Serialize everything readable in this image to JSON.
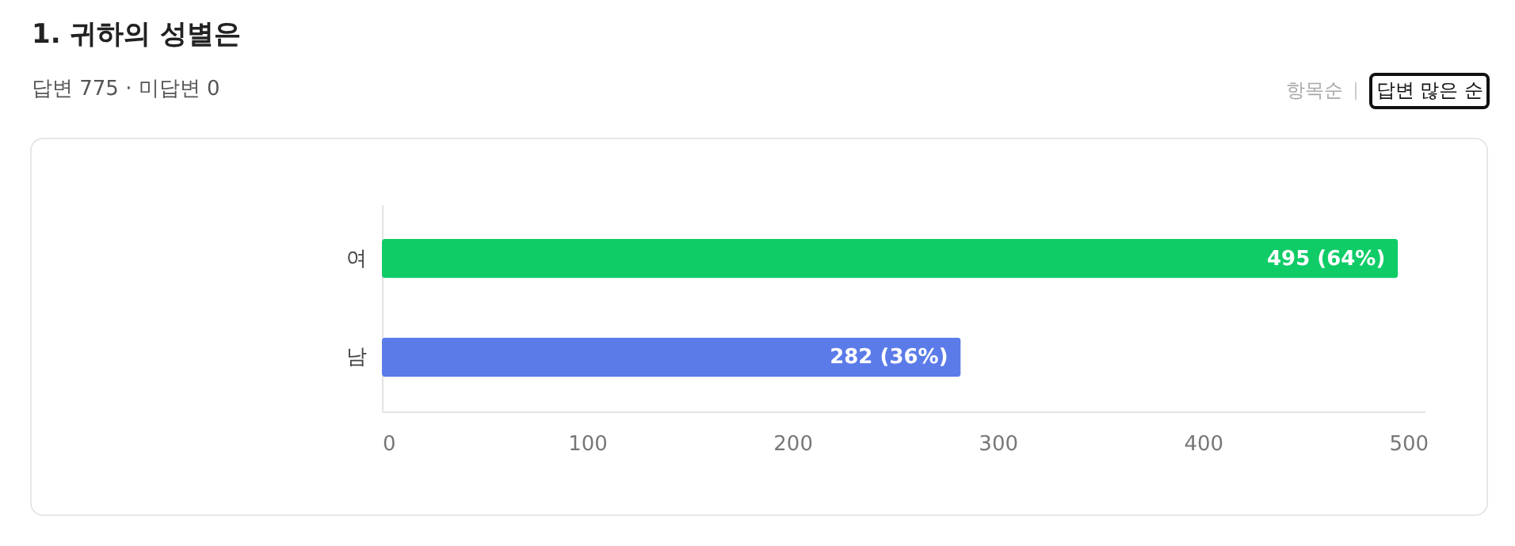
{
  "chart_data": {
    "type": "bar",
    "orientation": "horizontal",
    "title": "1. 귀하의 성별은",
    "subtitle": "답변 775 · 미답변 0",
    "annotations": [
      "항목순",
      "답변 많은 순"
    ],
    "categories": [
      "여",
      "남"
    ],
    "values": [
      495,
      282
    ],
    "colors": [
      "#0fcc67",
      "#5b7be9"
    ],
    "value_labels": [
      "495 (64%)",
      "282 (36%)"
    ],
    "xlim": [
      0,
      508
    ],
    "xticks": [
      0,
      100,
      200,
      300,
      400,
      500
    ],
    "grid": false
  }
}
